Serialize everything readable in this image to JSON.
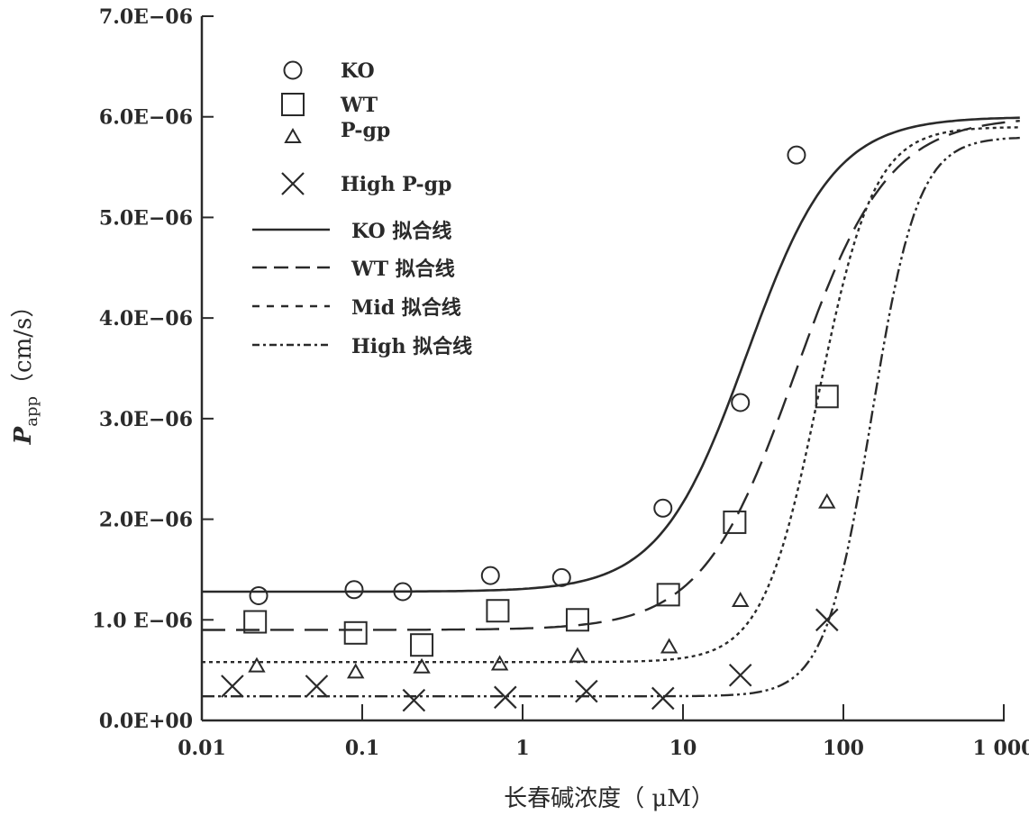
{
  "chart_data": {
    "type": "scatter",
    "title": "",
    "xlabel": "长春碱浓度（ μM）",
    "ylabel_main": "P",
    "ylabel_sub": "app",
    "ylabel_unit": "（cm/s）",
    "xscale": "log",
    "xlim": [
      0.01,
      1300
    ],
    "ylim": [
      0,
      7e-06
    ],
    "x_ticks": [
      0.01,
      0.1,
      1,
      10,
      100,
      1000
    ],
    "x_tick_labels": [
      "0.01",
      "0.1",
      "1",
      "10",
      "100",
      "1 000"
    ],
    "y_ticks": [
      0,
      1e-06,
      2e-06,
      3e-06,
      4e-06,
      5e-06,
      6e-06,
      7e-06
    ],
    "y_tick_labels": [
      "0.0E+00",
      "1.0 E−06",
      "2.0E−06",
      "3.0E−06",
      "4.0E−06",
      "5.0E−06",
      "6.0E−06",
      "7.0E−06"
    ],
    "grid": false,
    "legend_position": "top-left",
    "series": [
      {
        "name": "KO",
        "marker": "circle",
        "x": [
          0.0226,
          0.089,
          0.179,
          0.63,
          1.75,
          7.5,
          22.8,
          51
        ],
        "y": [
          1.24e-06,
          1.3e-06,
          1.28e-06,
          1.44e-06,
          1.42e-06,
          2.11e-06,
          3.16e-06,
          5.62e-06
        ]
      },
      {
        "name": "WT",
        "marker": "square",
        "x": [
          0.0215,
          0.091,
          0.235,
          0.7,
          2.2,
          8.1,
          21,
          79
        ],
        "y": [
          9.8e-07,
          8.7e-07,
          7.5e-07,
          1.09e-06,
          1e-06,
          1.25e-06,
          1.97e-06,
          3.22e-06
        ]
      },
      {
        "name": "P-gp",
        "marker": "triangle",
        "x": [
          0.022,
          0.091,
          0.235,
          0.72,
          2.2,
          8.2,
          22.8,
          79
        ],
        "y": [
          5.4e-07,
          4.8e-07,
          5.3e-07,
          5.6e-07,
          6.4e-07,
          7.3e-07,
          1.19e-06,
          2.17e-06
        ]
      },
      {
        "name": "High P-gp",
        "marker": "x",
        "x": [
          0.0155,
          0.052,
          0.21,
          0.78,
          2.5,
          7.5,
          22.8,
          79
        ],
        "y": [
          3.4e-07,
          3.4e-07,
          2e-07,
          2.3e-07,
          2.9e-07,
          2.2e-07,
          4.5e-07,
          1e-06
        ]
      }
    ],
    "fit_lines": [
      {
        "name": "KO 拟合线",
        "style": "solid",
        "model": "hill",
        "base": 1.28e-06,
        "top": 6e-06,
        "ec50": 25,
        "hill": 1.6
      },
      {
        "name": "WT 拟合线",
        "style": "dash",
        "model": "hill",
        "base": 9e-07,
        "top": 6e-06,
        "ec50": 50,
        "hill": 1.5
      },
      {
        "name": "Mid 拟合线",
        "style": "dot",
        "model": "hill",
        "base": 5.8e-07,
        "top": 5.9e-06,
        "ec50": 70,
        "hill": 2.5
      },
      {
        "name": "High 拟合线",
        "style": "dashdot",
        "model": "hill",
        "base": 2.4e-07,
        "top": 5.8e-06,
        "ec50": 150,
        "hill": 3
      }
    ],
    "colors": {
      "ink": "#2a2a2a"
    }
  }
}
